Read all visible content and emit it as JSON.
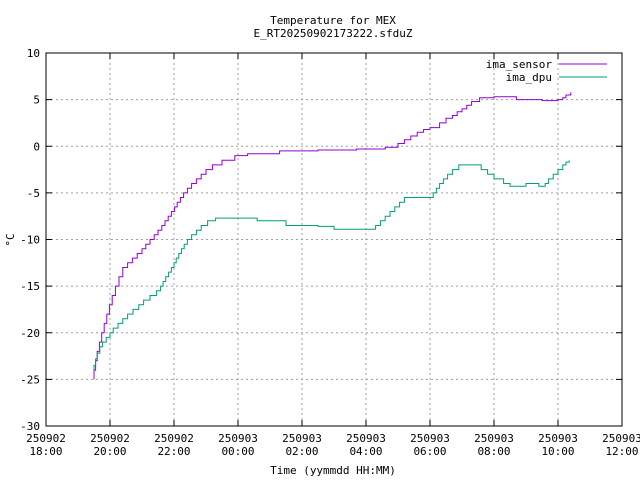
{
  "chart_data": {
    "type": "line",
    "title": "Temperature for MEX",
    "subtitle": "E_RT20250902173222.sfduZ",
    "xlabel": "Time (yymmdd HH:MM)",
    "ylabel": "°C",
    "grid": true,
    "legend_position": "top-right",
    "x_unit": "hours since 250902 18:00",
    "xlim": [
      0,
      18
    ],
    "ylim": [
      -30,
      10
    ],
    "y_ticks": [
      -30,
      -25,
      -20,
      -15,
      -10,
      -5,
      0,
      5,
      10
    ],
    "x_ticks": [
      {
        "t": 0,
        "date": "250902",
        "time": "18:00"
      },
      {
        "t": 2,
        "date": "250902",
        "time": "20:00"
      },
      {
        "t": 4,
        "date": "250902",
        "time": "22:00"
      },
      {
        "t": 6,
        "date": "250903",
        "time": "00:00"
      },
      {
        "t": 8,
        "date": "250903",
        "time": "02:00"
      },
      {
        "t": 10,
        "date": "250903",
        "time": "04:00"
      },
      {
        "t": 12,
        "date": "250903",
        "time": "06:00"
      },
      {
        "t": 14,
        "date": "250903",
        "time": "08:00"
      },
      {
        "t": 16,
        "date": "250903",
        "time": "10:00"
      },
      {
        "t": 18,
        "date": "250903",
        "time": "12:00"
      }
    ],
    "series": [
      {
        "name": "ima_sensor",
        "color": "#9400d3",
        "points": [
          [
            1.5,
            -25
          ],
          [
            1.5,
            -24.0
          ],
          [
            1.55,
            -23.0
          ],
          [
            1.6,
            -22.0
          ],
          [
            1.67,
            -21.0
          ],
          [
            1.74,
            -20.0
          ],
          [
            1.82,
            -19.0
          ],
          [
            1.9,
            -18.0
          ],
          [
            1.98,
            -17.0
          ],
          [
            2.07,
            -16.0
          ],
          [
            2.17,
            -15.0
          ],
          [
            2.28,
            -14.0
          ],
          [
            2.4,
            -13.0
          ],
          [
            2.55,
            -12.5
          ],
          [
            2.7,
            -12.0
          ],
          [
            2.85,
            -11.5
          ],
          [
            3.0,
            -11.0
          ],
          [
            3.12,
            -10.5
          ],
          [
            3.25,
            -10.0
          ],
          [
            3.38,
            -9.5
          ],
          [
            3.5,
            -9.0
          ],
          [
            3.62,
            -8.5
          ],
          [
            3.72,
            -8.0
          ],
          [
            3.82,
            -7.5
          ],
          [
            3.92,
            -7.0
          ],
          [
            4.02,
            -6.5
          ],
          [
            4.1,
            -6.0
          ],
          [
            4.2,
            -5.5
          ],
          [
            4.3,
            -5.0
          ],
          [
            4.42,
            -4.5
          ],
          [
            4.55,
            -4.0
          ],
          [
            4.7,
            -3.5
          ],
          [
            4.85,
            -3.0
          ],
          [
            5.0,
            -2.5
          ],
          [
            5.2,
            -2.0
          ],
          [
            5.5,
            -1.5
          ],
          [
            5.9,
            -1.0
          ],
          [
            6.3,
            -0.8
          ],
          [
            7.3,
            -0.5
          ],
          [
            8.5,
            -0.4
          ],
          [
            9.7,
            -0.3
          ],
          [
            10.6,
            -0.1
          ],
          [
            11.0,
            0.3
          ],
          [
            11.2,
            0.7
          ],
          [
            11.4,
            1.1
          ],
          [
            11.6,
            1.5
          ],
          [
            11.8,
            1.8
          ],
          [
            12.0,
            2.0
          ],
          [
            12.3,
            2.5
          ],
          [
            12.5,
            3.0
          ],
          [
            12.7,
            3.3
          ],
          [
            12.85,
            3.7
          ],
          [
            13.0,
            4.0
          ],
          [
            13.15,
            4.4
          ],
          [
            13.3,
            4.8
          ],
          [
            13.55,
            5.2
          ],
          [
            14.0,
            5.3
          ],
          [
            14.5,
            5.3
          ],
          [
            14.7,
            5.0
          ],
          [
            15.5,
            4.9
          ],
          [
            15.8,
            4.9
          ],
          [
            16.0,
            5.0
          ],
          [
            16.15,
            5.2
          ],
          [
            16.25,
            5.5
          ],
          [
            16.4,
            5.8
          ]
        ]
      },
      {
        "name": "ima_dpu",
        "color": "#009e73",
        "points": [
          [
            1.5,
            -24.0
          ],
          [
            1.5,
            -23.5
          ],
          [
            1.55,
            -22.8
          ],
          [
            1.6,
            -22.2
          ],
          [
            1.68,
            -21.5
          ],
          [
            1.77,
            -21.0
          ],
          [
            1.88,
            -20.5
          ],
          [
            2.0,
            -20.0
          ],
          [
            2.1,
            -19.5
          ],
          [
            2.25,
            -19.0
          ],
          [
            2.4,
            -18.5
          ],
          [
            2.55,
            -18.0
          ],
          [
            2.72,
            -17.5
          ],
          [
            2.9,
            -17.0
          ],
          [
            3.05,
            -16.5
          ],
          [
            3.25,
            -16.0
          ],
          [
            3.45,
            -15.5
          ],
          [
            3.58,
            -15.0
          ],
          [
            3.66,
            -14.5
          ],
          [
            3.74,
            -14.0
          ],
          [
            3.83,
            -13.5
          ],
          [
            3.92,
            -13.0
          ],
          [
            4.0,
            -12.5
          ],
          [
            4.07,
            -12.0
          ],
          [
            4.15,
            -11.5
          ],
          [
            4.23,
            -11.0
          ],
          [
            4.32,
            -10.5
          ],
          [
            4.42,
            -10.0
          ],
          [
            4.55,
            -9.5
          ],
          [
            4.7,
            -9.0
          ],
          [
            4.85,
            -8.5
          ],
          [
            5.05,
            -8.0
          ],
          [
            5.3,
            -7.7
          ],
          [
            6.0,
            -7.7
          ],
          [
            6.6,
            -8.0
          ],
          [
            7.5,
            -8.5
          ],
          [
            8.5,
            -8.6
          ],
          [
            9.0,
            -8.9
          ],
          [
            9.6,
            -8.9
          ],
          [
            10.2,
            -8.9
          ],
          [
            10.3,
            -8.5
          ],
          [
            10.45,
            -8.0
          ],
          [
            10.6,
            -7.5
          ],
          [
            10.75,
            -7.0
          ],
          [
            10.9,
            -6.5
          ],
          [
            11.05,
            -6.0
          ],
          [
            11.2,
            -5.5
          ],
          [
            11.9,
            -5.5
          ],
          [
            12.1,
            -5.0
          ],
          [
            12.2,
            -4.5
          ],
          [
            12.3,
            -4.0
          ],
          [
            12.42,
            -3.5
          ],
          [
            12.55,
            -3.0
          ],
          [
            12.7,
            -2.5
          ],
          [
            12.9,
            -2.0
          ],
          [
            13.4,
            -2.0
          ],
          [
            13.6,
            -2.5
          ],
          [
            13.8,
            -3.0
          ],
          [
            14.0,
            -3.5
          ],
          [
            14.3,
            -4.0
          ],
          [
            14.5,
            -4.3
          ],
          [
            14.8,
            -4.3
          ],
          [
            15.0,
            -4.0
          ],
          [
            15.25,
            -4.0
          ],
          [
            15.4,
            -4.3
          ],
          [
            15.6,
            -4.0
          ],
          [
            15.7,
            -3.5
          ],
          [
            15.85,
            -3.0
          ],
          [
            16.0,
            -2.5
          ],
          [
            16.15,
            -2.0
          ],
          [
            16.25,
            -1.7
          ],
          [
            16.35,
            -1.5
          ]
        ]
      }
    ]
  }
}
